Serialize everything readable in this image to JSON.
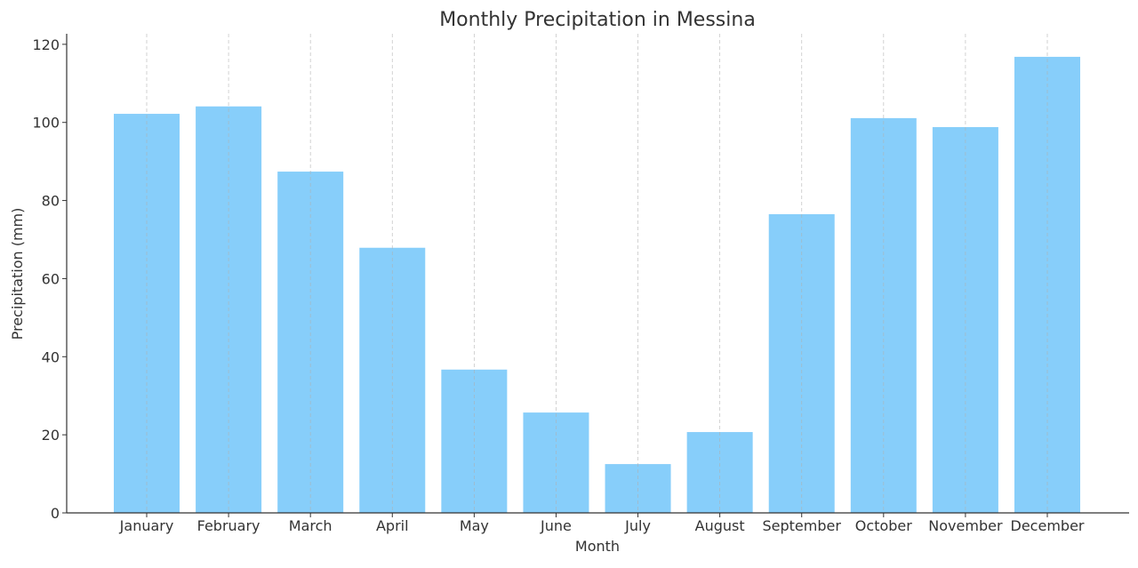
{
  "chart_data": {
    "type": "bar",
    "title": "Monthly Precipitation in Messina",
    "xlabel": "Month",
    "ylabel": "Precipitation (mm)",
    "categories": [
      "January",
      "February",
      "March",
      "April",
      "May",
      "June",
      "July",
      "August",
      "September",
      "October",
      "November",
      "December"
    ],
    "values": [
      102.2,
      104.1,
      87.4,
      67.9,
      36.7,
      25.7,
      12.5,
      20.7,
      76.5,
      101.1,
      98.8,
      116.8
    ],
    "ylim": [
      0,
      122.7
    ],
    "yticks": [
      0,
      20,
      40,
      60,
      80,
      100,
      120
    ],
    "grid": "vertical dashed at categories",
    "bar_color": "#87CEFA",
    "legend": "none"
  }
}
